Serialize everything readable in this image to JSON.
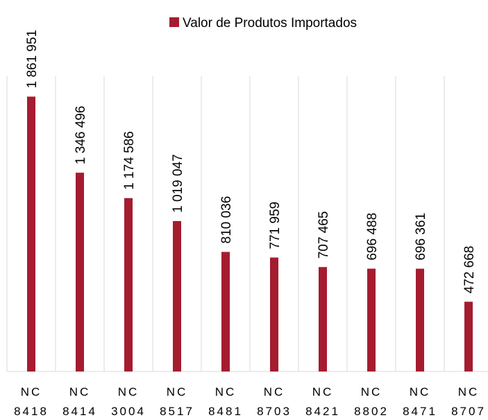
{
  "chart_data": {
    "type": "bar",
    "categories": [
      "NC 8418",
      "NC 8414",
      "NC 3004",
      "NC 8517",
      "NC 8481",
      "NC 8703",
      "NC 8421",
      "NC 8802",
      "NC 8471",
      "NC 8707"
    ],
    "series": [
      {
        "name": "Valor de Produtos Importados",
        "color": "#a51c30",
        "values": [
          1861951,
          1346496,
          1174586,
          1019047,
          810036,
          771959,
          707465,
          696488,
          696361,
          472668
        ],
        "value_labels": [
          "1 861 951",
          "1 346 496",
          "1 174 586",
          "1 019 047",
          "810 036",
          "771 959",
          "707 465",
          "696 488",
          "696 361",
          "472 668"
        ]
      }
    ],
    "ylim": [
      0,
      2000000
    ],
    "grid": true,
    "legend": "top"
  }
}
